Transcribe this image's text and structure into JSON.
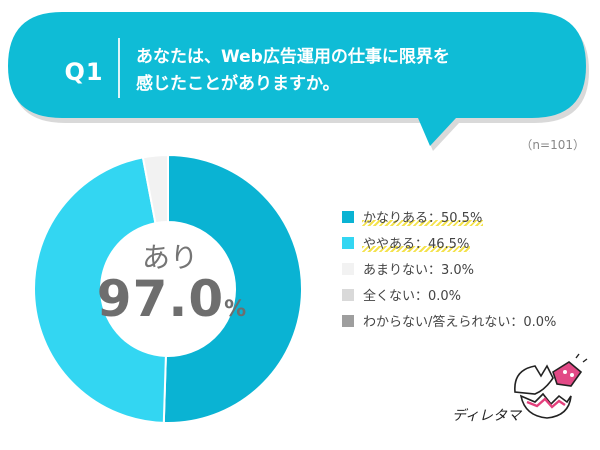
{
  "question": {
    "label": "Q1",
    "line1": "あなたは、Web広告運用の仕事に限界を",
    "line2": "感じたことがありますか。",
    "n": "（n=101）"
  },
  "center": {
    "label": "あり",
    "value": "97.0",
    "unit": "%"
  },
  "brand": "ディレタマ",
  "colors": {
    "bubble": "#0fbcd6",
    "accent": "#f4e24c"
  },
  "chart_data": {
    "type": "pie",
    "donut": true,
    "categories": [
      "かなりある",
      "ややある",
      "あまりない",
      "全くない",
      "わからない/答えられない"
    ],
    "values": [
      50.5,
      46.5,
      3.0,
      0.0,
      0.0
    ],
    "colors": [
      "#0ab3d3",
      "#33d6f2",
      "#f2f2f2",
      "#d9d9d9",
      "#9e9e9e"
    ],
    "legend": [
      {
        "text": "かなりある：50.5%",
        "highlight": true
      },
      {
        "text": "ややある：46.5%",
        "highlight": true
      },
      {
        "text": "あまりない：3.0%",
        "highlight": false
      },
      {
        "text": "全くない：0.0%",
        "highlight": false
      },
      {
        "text": "わからない/答えられない：0.0%",
        "highlight": false
      }
    ],
    "legend_position": "right"
  }
}
